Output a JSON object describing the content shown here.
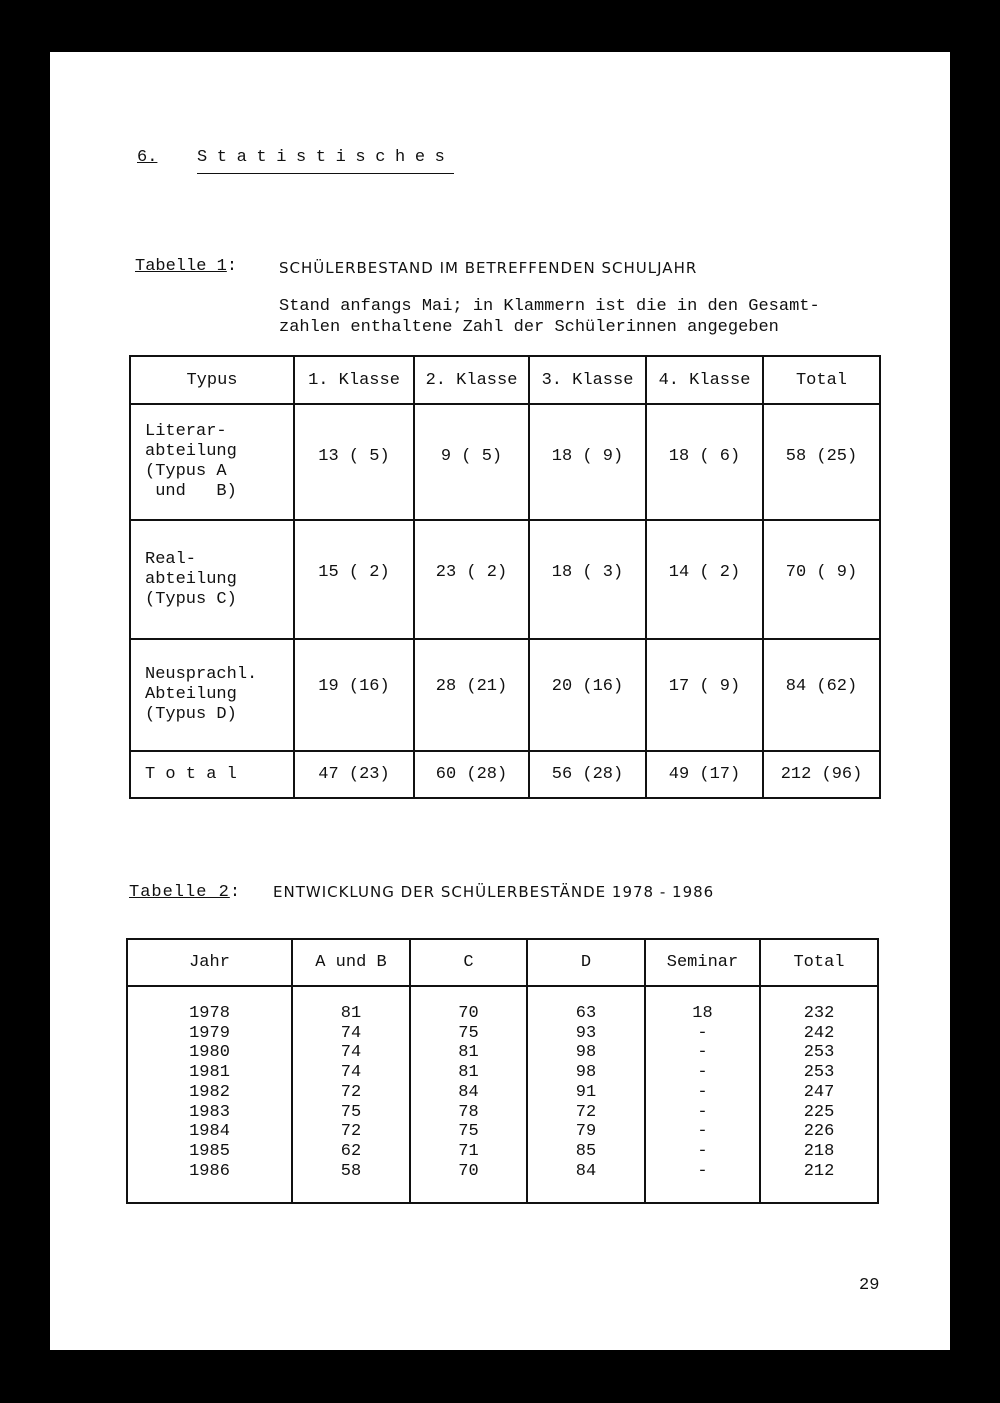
{
  "section_title": {
    "number": "6.",
    "title": "Statistisches"
  },
  "table1": {
    "label": "Tabelle 1",
    "colon": ":",
    "title": "SCHÜLERBESTAND IM BETREFFENDEN SCHULJAHR",
    "note_line1": "Stand anfangs Mai; in Klammern ist die in den Gesamt-",
    "note_line2": "zahlen enthaltene Zahl der Schülerinnen angegeben",
    "headers": [
      "Typus",
      "1. Klasse",
      "2. Klasse",
      "3. Klasse",
      "4. Klasse",
      "Total"
    ],
    "rows": [
      {
        "label": [
          "Literar-",
          "abteilung",
          "(Typus A",
          " und   B)"
        ],
        "values": [
          "13 ( 5)",
          "9 ( 5)",
          "18 ( 9)",
          "18 ( 6)",
          "58 (25)"
        ]
      },
      {
        "label": [
          "Real-",
          "abteilung",
          "(Typus C)"
        ],
        "values": [
          "15 ( 2)",
          "23 ( 2)",
          "18 ( 3)",
          "14 ( 2)",
          "70 ( 9)"
        ]
      },
      {
        "label": [
          "Neusprachl.",
          "Abteilung",
          "(Typus D)"
        ],
        "values": [
          "19 (16)",
          "28 (21)",
          "20 (16)",
          "17 ( 9)",
          "84 (62)"
        ]
      },
      {
        "label": [
          "T o t a l"
        ],
        "values": [
          "47 (23)",
          "60 (28)",
          "56 (28)",
          "49 (17)",
          "212 (96)"
        ]
      }
    ]
  },
  "table2": {
    "label": "Tabelle 2",
    "colon": ":",
    "title": "ENTWICKLUNG DER SCHÜLERBESTÄNDE 1978 - 1986",
    "headers": [
      "Jahr",
      "A und B",
      "C",
      "D",
      "Seminar",
      "Total"
    ],
    "columns": [
      [
        "1978",
        "1979",
        "1980",
        "1981",
        "1982",
        "1983",
        "1984",
        "1985",
        "1986"
      ],
      [
        "81",
        "74",
        "74",
        "74",
        "72",
        "75",
        "72",
        "62",
        "58"
      ],
      [
        "70",
        "75",
        "81",
        "81",
        "84",
        "78",
        "75",
        "71",
        "70"
      ],
      [
        "63",
        "93",
        "98",
        "98",
        "91",
        "72",
        "79",
        "85",
        "84"
      ],
      [
        "18",
        "-",
        "-",
        "-",
        "-",
        "-",
        "-",
        "-",
        "-"
      ],
      [
        "232",
        "242",
        "253",
        "253",
        "247",
        "225",
        "226",
        "218",
        "212"
      ]
    ]
  },
  "page_number": "29"
}
